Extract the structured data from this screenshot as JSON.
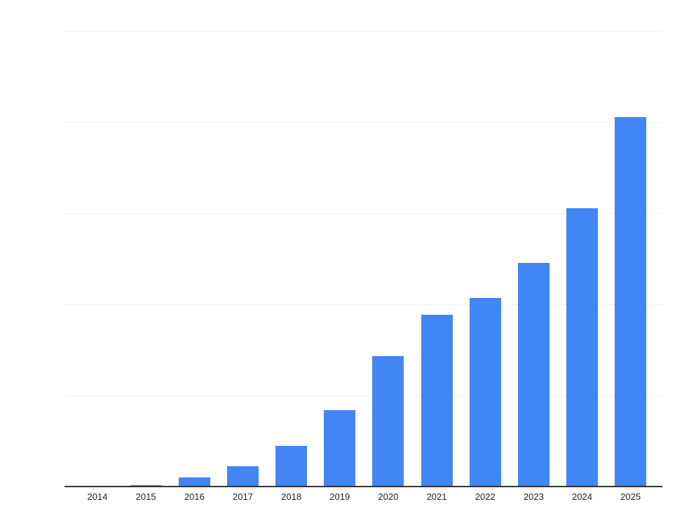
{
  "chart": {
    "background_color": "#ffffff",
    "bar_color": "#4285f4",
    "axis_line_color": "#333333",
    "gridline_color": "#f1f1f1",
    "label_color": "#222222"
  },
  "chart_data": {
    "type": "bar",
    "title": "",
    "xlabel": "",
    "ylabel": "",
    "categories": [
      "2014",
      "2015",
      "2016",
      "2017",
      "2018",
      "2019",
      "2020",
      "2021",
      "2022",
      "2023",
      "2024",
      "2025"
    ],
    "values": [
      0,
      0.3,
      2.0,
      4.4,
      8.9,
      16.8,
      28.6,
      37.7,
      41.4,
      49.1,
      61.1,
      81.1
    ],
    "ylim": [
      0,
      100
    ],
    "gridline_step": 20,
    "grid": true,
    "y_tick_labels_visible": false,
    "legend": "none"
  }
}
